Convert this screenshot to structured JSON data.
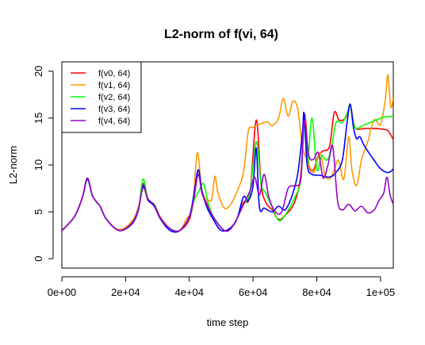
{
  "chart_data": {
    "type": "line",
    "title": "L2-norm of f(vi, 64)",
    "xlabel": "time step",
    "ylabel": "L2-norm",
    "xlim": [
      0,
      104000
    ],
    "ylim": [
      -1,
      21
    ],
    "x_ticks": [
      0,
      20000,
      40000,
      60000,
      80000,
      100000
    ],
    "x_tick_labels": [
      "0e+00",
      "2e+04",
      "4e+04",
      "6e+04",
      "8e+04",
      "1e+05"
    ],
    "y_ticks": [
      0,
      5,
      10,
      15,
      20
    ],
    "y_tick_labels": [
      "0",
      "5",
      "10",
      "15",
      "20"
    ],
    "grid": false,
    "legend_position": "top-left",
    "series": [
      {
        "name": "f(v0, 64)",
        "color": "#ff0000",
        "points": [
          [
            0,
            3.0
          ],
          [
            4000,
            4.5
          ],
          [
            6500,
            6.6
          ],
          [
            8000,
            8.6
          ],
          [
            9500,
            6.8
          ],
          [
            11000,
            6.0
          ],
          [
            12000,
            5.6
          ],
          [
            14000,
            4.2
          ],
          [
            18000,
            3.0
          ],
          [
            22000,
            3.8
          ],
          [
            24000,
            5.2
          ],
          [
            25500,
            8.0
          ],
          [
            27000,
            6.4
          ],
          [
            29000,
            5.6
          ],
          [
            31000,
            4.4
          ],
          [
            34000,
            3.2
          ],
          [
            37000,
            3.0
          ],
          [
            40000,
            4.2
          ],
          [
            41500,
            6.5
          ],
          [
            42800,
            9.5
          ],
          [
            44000,
            7.2
          ],
          [
            46000,
            5.5
          ],
          [
            48000,
            4.2
          ],
          [
            51000,
            3.0
          ],
          [
            53000,
            3.3
          ],
          [
            55000,
            4.3
          ],
          [
            57000,
            6.0
          ],
          [
            59000,
            6.8
          ],
          [
            61000,
            14.8
          ],
          [
            62500,
            8.0
          ],
          [
            64000,
            6.0
          ],
          [
            66000,
            5.2
          ],
          [
            68000,
            4.2
          ],
          [
            70000,
            4.6
          ],
          [
            73000,
            6.0
          ],
          [
            75000,
            9.0
          ],
          [
            76200,
            15.4
          ],
          [
            77500,
            10.0
          ],
          [
            79000,
            9.5
          ],
          [
            80500,
            11.0
          ],
          [
            82000,
            11.5
          ],
          [
            84000,
            12.0
          ],
          [
            85500,
            15.6
          ],
          [
            87000,
            14.8
          ],
          [
            89000,
            15.0
          ],
          [
            90500,
            16.3
          ],
          [
            92000,
            14.0
          ],
          [
            95000,
            13.9
          ],
          [
            98000,
            13.9
          ],
          [
            101000,
            13.8
          ],
          [
            102500,
            13.6
          ],
          [
            104000,
            12.7
          ]
        ]
      },
      {
        "name": "f(v1, 64)",
        "color": "#ff9900",
        "points": [
          [
            0,
            3.0
          ],
          [
            4000,
            4.5
          ],
          [
            6500,
            6.6
          ],
          [
            8000,
            8.5
          ],
          [
            9500,
            6.8
          ],
          [
            11000,
            6.0
          ],
          [
            12000,
            5.6
          ],
          [
            14000,
            4.2
          ],
          [
            18000,
            3.1
          ],
          [
            22000,
            4.0
          ],
          [
            24000,
            5.5
          ],
          [
            25500,
            7.6
          ],
          [
            27000,
            6.2
          ],
          [
            29000,
            5.8
          ],
          [
            31000,
            4.4
          ],
          [
            34000,
            3.2
          ],
          [
            37000,
            3.0
          ],
          [
            39000,
            4.2
          ],
          [
            41000,
            5.5
          ],
          [
            42500,
            11.3
          ],
          [
            44000,
            7.0
          ],
          [
            45500,
            6.4
          ],
          [
            47000,
            6.3
          ],
          [
            48000,
            8.8
          ],
          [
            49000,
            7.0
          ],
          [
            51000,
            5.4
          ],
          [
            53000,
            5.8
          ],
          [
            55000,
            7.2
          ],
          [
            57000,
            9.2
          ],
          [
            58500,
            13.6
          ],
          [
            60000,
            14.0
          ],
          [
            62500,
            14.4
          ],
          [
            64500,
            14.6
          ],
          [
            66000,
            14.2
          ],
          [
            68000,
            15.0
          ],
          [
            69500,
            17.1
          ],
          [
            71000,
            15.2
          ],
          [
            72500,
            16.8
          ],
          [
            74000,
            16.0
          ],
          [
            75500,
            12.0
          ],
          [
            77000,
            10.5
          ],
          [
            79000,
            9.2
          ],
          [
            81000,
            11.3
          ],
          [
            82500,
            9.0
          ],
          [
            84000,
            8.5
          ],
          [
            85500,
            9.5
          ],
          [
            86800,
            10.5
          ],
          [
            88500,
            8.5
          ],
          [
            90000,
            13.0
          ],
          [
            91000,
            9.5
          ],
          [
            92500,
            7.8
          ],
          [
            94000,
            10.5
          ],
          [
            96000,
            12.5
          ],
          [
            98000,
            14.8
          ],
          [
            100000,
            14.3
          ],
          [
            101500,
            17.0
          ],
          [
            102300,
            19.6
          ],
          [
            103200,
            16.2
          ],
          [
            104000,
            17.2
          ]
        ]
      },
      {
        "name": "f(v2, 64)",
        "color": "#00ff00",
        "points": [
          [
            0,
            3.0
          ],
          [
            4000,
            4.5
          ],
          [
            6500,
            6.6
          ],
          [
            8000,
            8.4
          ],
          [
            9500,
            6.8
          ],
          [
            11000,
            6.0
          ],
          [
            12000,
            5.6
          ],
          [
            14000,
            4.2
          ],
          [
            18000,
            3.0
          ],
          [
            22000,
            3.8
          ],
          [
            24000,
            5.2
          ],
          [
            25500,
            8.5
          ],
          [
            27000,
            6.3
          ],
          [
            29000,
            5.8
          ],
          [
            31000,
            4.2
          ],
          [
            34000,
            3.2
          ],
          [
            37000,
            3.0
          ],
          [
            40000,
            4.4
          ],
          [
            41500,
            6.2
          ],
          [
            43000,
            7.2
          ],
          [
            44500,
            8.0
          ],
          [
            46000,
            5.8
          ],
          [
            48000,
            4.2
          ],
          [
            51000,
            3.0
          ],
          [
            53000,
            3.2
          ],
          [
            55000,
            4.3
          ],
          [
            57000,
            5.8
          ],
          [
            59000,
            7.0
          ],
          [
            61000,
            12.5
          ],
          [
            62500,
            8.0
          ],
          [
            64000,
            7.0
          ],
          [
            66000,
            5.5
          ],
          [
            68000,
            4.1
          ],
          [
            70000,
            4.6
          ],
          [
            73000,
            6.5
          ],
          [
            75000,
            8.5
          ],
          [
            76200,
            15.2
          ],
          [
            77000,
            10.0
          ],
          [
            78500,
            15.0
          ],
          [
            80000,
            9.5
          ],
          [
            81500,
            11.0
          ],
          [
            83000,
            10.5
          ],
          [
            84500,
            11.5
          ],
          [
            86000,
            14.5
          ],
          [
            88000,
            14.5
          ],
          [
            89500,
            15.5
          ],
          [
            90500,
            16.3
          ],
          [
            92000,
            14.0
          ],
          [
            95000,
            14.3
          ],
          [
            98000,
            14.7
          ],
          [
            101000,
            15.1
          ],
          [
            104000,
            15.2
          ]
        ]
      },
      {
        "name": "f(v3, 64)",
        "color": "#0000ff",
        "points": [
          [
            0,
            3.0
          ],
          [
            4000,
            4.5
          ],
          [
            6500,
            6.6
          ],
          [
            8000,
            8.5
          ],
          [
            9500,
            6.8
          ],
          [
            11000,
            6.0
          ],
          [
            12000,
            5.6
          ],
          [
            14000,
            4.2
          ],
          [
            18000,
            3.0
          ],
          [
            22000,
            3.7
          ],
          [
            24000,
            5.2
          ],
          [
            25500,
            7.8
          ],
          [
            27000,
            6.3
          ],
          [
            29000,
            5.6
          ],
          [
            31000,
            4.2
          ],
          [
            34000,
            3.0
          ],
          [
            37000,
            3.0
          ],
          [
            40000,
            4.5
          ],
          [
            41500,
            7.0
          ],
          [
            42800,
            9.5
          ],
          [
            44000,
            7.2
          ],
          [
            45500,
            5.5
          ],
          [
            47500,
            4.2
          ],
          [
            50000,
            3.0
          ],
          [
            53000,
            3.3
          ],
          [
            55000,
            4.3
          ],
          [
            57000,
            6.6
          ],
          [
            58500,
            6.2
          ],
          [
            60000,
            7.8
          ],
          [
            61000,
            11.8
          ],
          [
            62000,
            5.5
          ],
          [
            63500,
            5.4
          ],
          [
            66000,
            5.0
          ],
          [
            68000,
            5.6
          ],
          [
            70000,
            5.2
          ],
          [
            72000,
            6.5
          ],
          [
            74000,
            9.0
          ],
          [
            75500,
            13.5
          ],
          [
            76000,
            15.5
          ],
          [
            77000,
            10.0
          ],
          [
            78500,
            9.0
          ],
          [
            81000,
            8.9
          ],
          [
            84000,
            8.7
          ],
          [
            86000,
            9.2
          ],
          [
            88000,
            10.5
          ],
          [
            89500,
            14.5
          ],
          [
            90500,
            16.5
          ],
          [
            91500,
            14.0
          ],
          [
            92500,
            12.8
          ],
          [
            93500,
            13.0
          ],
          [
            95000,
            12.0
          ],
          [
            98000,
            10.5
          ],
          [
            100000,
            9.6
          ],
          [
            102000,
            9.2
          ],
          [
            103200,
            9.3
          ],
          [
            104000,
            9.6
          ]
        ]
      },
      {
        "name": "f(v4, 64)",
        "color": "#9900cc",
        "points": [
          [
            0,
            3.0
          ],
          [
            4000,
            4.5
          ],
          [
            6500,
            6.6
          ],
          [
            8000,
            8.6
          ],
          [
            9500,
            6.8
          ],
          [
            11000,
            6.0
          ],
          [
            12000,
            5.6
          ],
          [
            14000,
            4.2
          ],
          [
            18000,
            3.0
          ],
          [
            22000,
            3.8
          ],
          [
            24000,
            5.3
          ],
          [
            25500,
            7.6
          ],
          [
            27000,
            6.4
          ],
          [
            29000,
            5.7
          ],
          [
            31000,
            4.3
          ],
          [
            34000,
            3.2
          ],
          [
            37000,
            3.0
          ],
          [
            40000,
            4.4
          ],
          [
            41500,
            6.6
          ],
          [
            42800,
            9.0
          ],
          [
            44000,
            7.0
          ],
          [
            46000,
            5.4
          ],
          [
            48000,
            4.2
          ],
          [
            51000,
            3.0
          ],
          [
            53000,
            3.2
          ],
          [
            55000,
            4.3
          ],
          [
            57000,
            5.8
          ],
          [
            59000,
            7.2
          ],
          [
            60500,
            8.7
          ],
          [
            62000,
            6.8
          ],
          [
            63500,
            9.0
          ],
          [
            65000,
            6.5
          ],
          [
            67000,
            5.0
          ],
          [
            69000,
            5.0
          ],
          [
            71000,
            7.5
          ],
          [
            73000,
            7.8
          ],
          [
            75000,
            8.5
          ],
          [
            76000,
            14.7
          ],
          [
            77500,
            11.0
          ],
          [
            79000,
            10.6
          ],
          [
            80500,
            11.3
          ],
          [
            82000,
            8.6
          ],
          [
            83500,
            10.0
          ],
          [
            85000,
            12.0
          ],
          [
            86500,
            6.2
          ],
          [
            88000,
            5.2
          ],
          [
            90000,
            5.8
          ],
          [
            92000,
            5.1
          ],
          [
            94000,
            5.6
          ],
          [
            96000,
            4.9
          ],
          [
            98000,
            5.2
          ],
          [
            99500,
            6.2
          ],
          [
            101000,
            7.0
          ],
          [
            102000,
            8.7
          ],
          [
            103000,
            6.8
          ],
          [
            104000,
            5.8
          ]
        ]
      }
    ]
  }
}
